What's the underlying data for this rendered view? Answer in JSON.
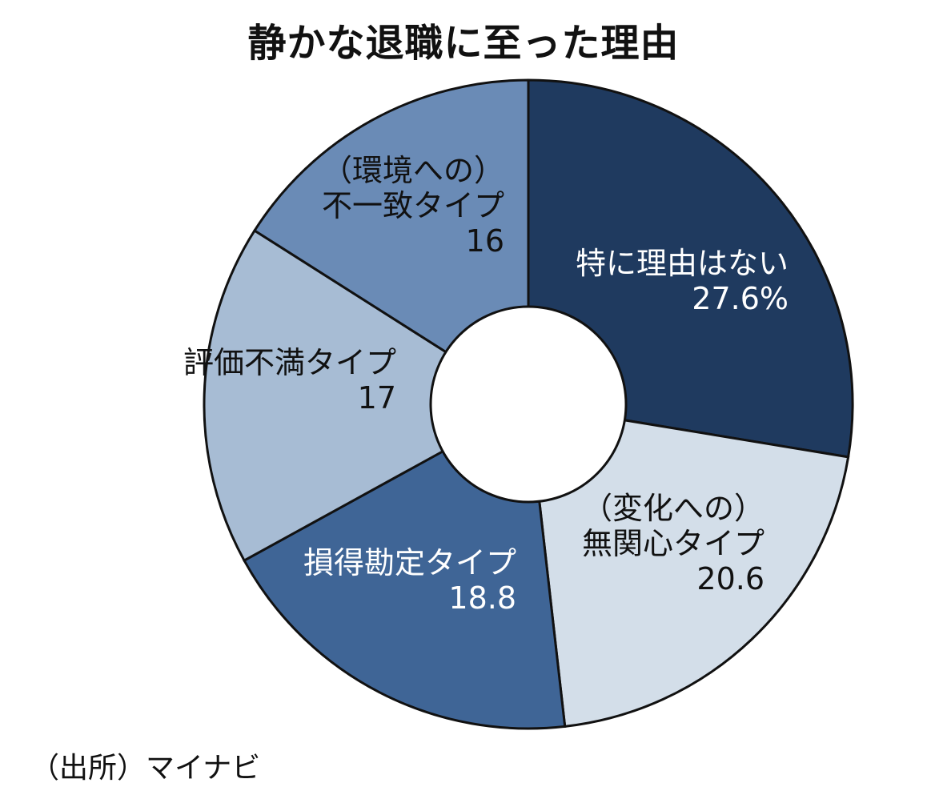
{
  "title": "静かな退職に至った理由",
  "source": "（出所）マイナビ",
  "chart_data": {
    "type": "pie",
    "donut": true,
    "title": "静かな退職に至った理由",
    "unit": "%",
    "legend": "none (labels inside slices)",
    "slices": [
      {
        "label_lines": [
          "特に理由はない"
        ],
        "value": 27.6,
        "value_text": "27.6%",
        "color": "#1f3a5f",
        "text_color": "#ffffff"
      },
      {
        "label_lines": [
          "（変化への）",
          "無関心タイプ"
        ],
        "value": 20.6,
        "value_text": "20.6",
        "color": "#d3dee9",
        "text_color": "#111111"
      },
      {
        "label_lines": [
          "損得勘定タイプ"
        ],
        "value": 18.8,
        "value_text": "18.8",
        "color": "#3f6596",
        "text_color": "#ffffff"
      },
      {
        "label_lines": [
          "評価不満タイプ"
        ],
        "value": 17,
        "value_text": "17",
        "color": "#a7bcd4",
        "text_color": "#111111"
      },
      {
        "label_lines": [
          "（環境への）",
          "不一致タイプ"
        ],
        "value": 16,
        "value_text": "16",
        "color": "#6a8bb6",
        "text_color": "#111111"
      }
    ]
  }
}
